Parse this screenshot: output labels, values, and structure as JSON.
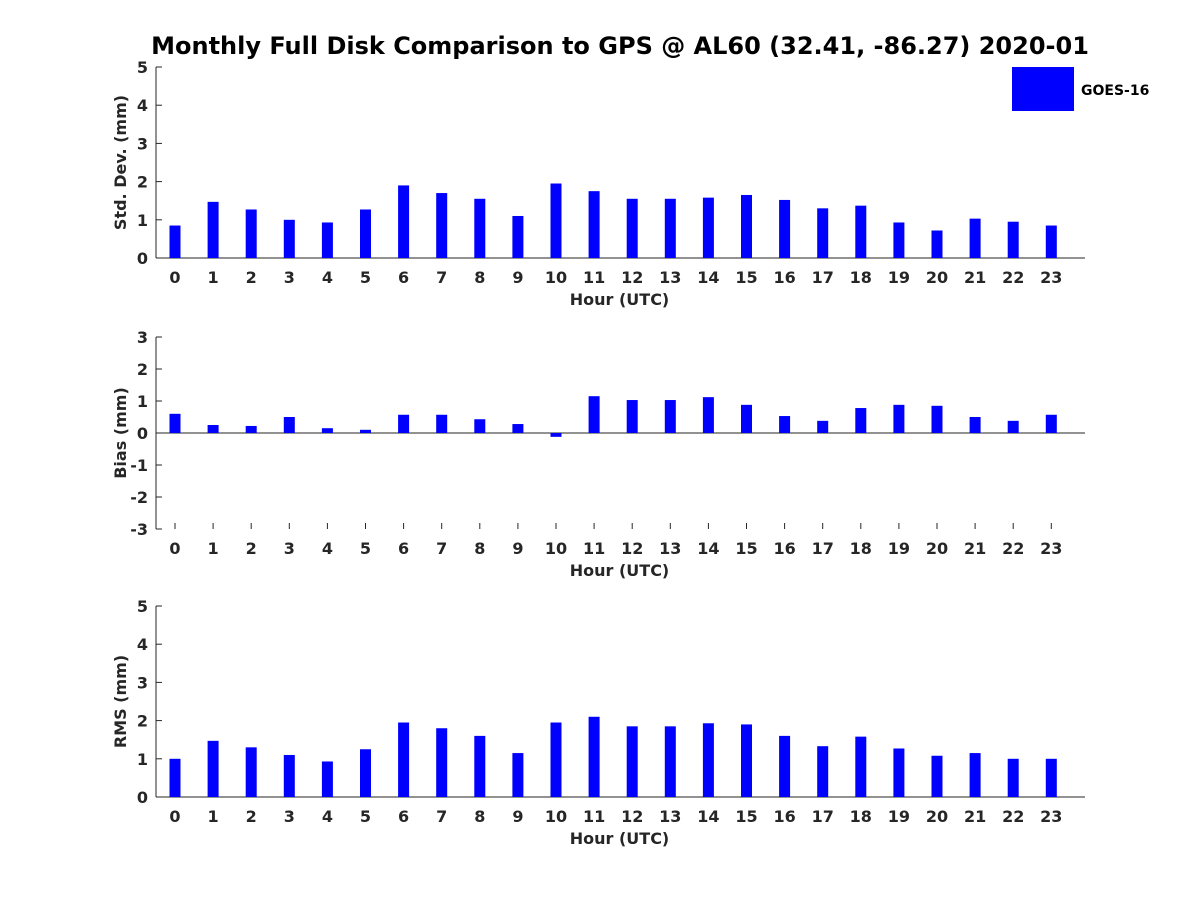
{
  "title": "Monthly Full Disk Comparison to GPS @ AL60 (32.41, -86.27) 2020-01",
  "legend": {
    "label": "GOES-16",
    "color": "#0000ff",
    "placement": "top-right"
  },
  "bar_color": "#0000ff",
  "chart_data": [
    {
      "type": "bar",
      "xlabel": "Hour (UTC)",
      "ylabel": "Std. Dev. (mm)",
      "ylim": [
        0,
        5
      ],
      "yticks": [
        "0",
        "1",
        "2",
        "3",
        "4",
        "5"
      ],
      "categories": [
        "0",
        "1",
        "2",
        "3",
        "4",
        "5",
        "6",
        "7",
        "8",
        "9",
        "10",
        "11",
        "12",
        "13",
        "14",
        "15",
        "16",
        "17",
        "18",
        "19",
        "20",
        "21",
        "22",
        "23"
      ],
      "series": [
        {
          "name": "GOES-16",
          "values": [
            0.85,
            1.47,
            1.27,
            1.0,
            0.93,
            1.27,
            1.9,
            1.7,
            1.55,
            1.1,
            1.95,
            1.75,
            1.55,
            1.55,
            1.58,
            1.65,
            1.52,
            1.3,
            1.37,
            0.93,
            0.72,
            1.03,
            0.95,
            0.85
          ]
        }
      ],
      "grid": false
    },
    {
      "type": "bar",
      "xlabel": "Hour (UTC)",
      "ylabel": "Bias (mm)",
      "ylim": [
        -3,
        3
      ],
      "yticks": [
        "-3",
        "-2",
        "-1",
        "0",
        "1",
        "2",
        "3"
      ],
      "categories": [
        "0",
        "1",
        "2",
        "3",
        "4",
        "5",
        "6",
        "7",
        "8",
        "9",
        "10",
        "11",
        "12",
        "13",
        "14",
        "15",
        "16",
        "17",
        "18",
        "19",
        "20",
        "21",
        "22",
        "23"
      ],
      "series": [
        {
          "name": "GOES-16",
          "values": [
            0.6,
            0.25,
            0.22,
            0.5,
            0.15,
            0.1,
            0.57,
            0.57,
            0.43,
            0.28,
            -0.12,
            1.15,
            1.03,
            1.03,
            1.12,
            0.88,
            0.53,
            0.38,
            0.78,
            0.88,
            0.85,
            0.5,
            0.38,
            0.57
          ]
        }
      ],
      "grid": false
    },
    {
      "type": "bar",
      "xlabel": "Hour (UTC)",
      "ylabel": "RMS (mm)",
      "ylim": [
        0,
        5
      ],
      "yticks": [
        "0",
        "1",
        "2",
        "3",
        "4",
        "5"
      ],
      "categories": [
        "0",
        "1",
        "2",
        "3",
        "4",
        "5",
        "6",
        "7",
        "8",
        "9",
        "10",
        "11",
        "12",
        "13",
        "14",
        "15",
        "16",
        "17",
        "18",
        "19",
        "20",
        "21",
        "22",
        "23"
      ],
      "series": [
        {
          "name": "GOES-16",
          "values": [
            1.0,
            1.47,
            1.3,
            1.1,
            0.93,
            1.25,
            1.95,
            1.8,
            1.6,
            1.15,
            1.95,
            2.1,
            1.85,
            1.85,
            1.93,
            1.9,
            1.6,
            1.33,
            1.58,
            1.27,
            1.08,
            1.15,
            1.0,
            1.0
          ]
        }
      ],
      "grid": false
    }
  ]
}
